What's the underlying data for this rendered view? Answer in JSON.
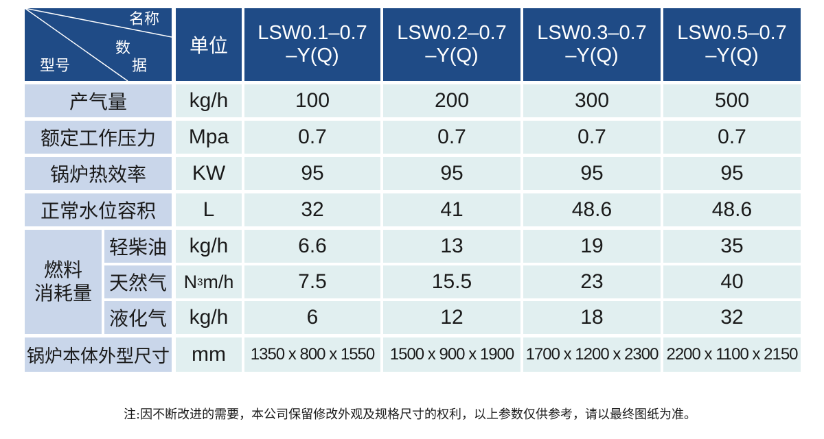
{
  "header": {
    "corner": {
      "name": "名称",
      "data_top": "数",
      "data_bottom": "据",
      "model": "型号"
    },
    "unit": "单位",
    "models": [
      "LSW0.1–0.7\n–Y(Q)",
      "LSW0.2–0.7\n–Y(Q)",
      "LSW0.3–0.7\n–Y(Q)",
      "LSW0.5–0.7\n–Y(Q)"
    ]
  },
  "rows": [
    {
      "label": "产气量",
      "unit": "kg/h",
      "values": [
        "100",
        "200",
        "300",
        "500"
      ]
    },
    {
      "label": "额定工作压力",
      "unit": "Mpa",
      "values": [
        "0.7",
        "0.7",
        "0.7",
        "0.7"
      ]
    },
    {
      "label": "锅炉热效率",
      "unit": "KW",
      "values": [
        "95",
        "95",
        "95",
        "95"
      ]
    },
    {
      "label": "正常水位容积",
      "unit": "L",
      "values": [
        "32",
        "41",
        "48.6",
        "48.6"
      ]
    }
  ],
  "fuel": {
    "group_label_line1": "燃料",
    "group_label_line2": "消耗量",
    "rows": [
      {
        "label": "轻柴油",
        "unit": "kg/h",
        "values": [
          "6.6",
          "13",
          "19",
          "35"
        ]
      },
      {
        "label": "天然气",
        "unit_base": "N",
        "unit_sup": "3",
        "unit_rest": "m/h",
        "values": [
          "7.5",
          "15.5",
          "23",
          "40"
        ]
      },
      {
        "label": "液化气",
        "unit": "kg/h",
        "values": [
          "6",
          "12",
          "18",
          "32"
        ]
      }
    ]
  },
  "dimensions": {
    "label": "锅炉本体外型尺寸",
    "unit": "mm",
    "values": [
      "1350 x 800 x 1550",
      "1500 x 900 x 1900",
      "1700 x 1200 x 2300",
      "2200 x 1100 x 2150"
    ]
  },
  "note": "注:因不断改进的需要，本公司保留修改外观及规格尺寸的权利，以上参数仅供参考，请以最终图纸为准。",
  "colors": {
    "header": "#1f4b86",
    "label_bg": "#c9d6ea",
    "value_bg": "#e1eff0"
  }
}
